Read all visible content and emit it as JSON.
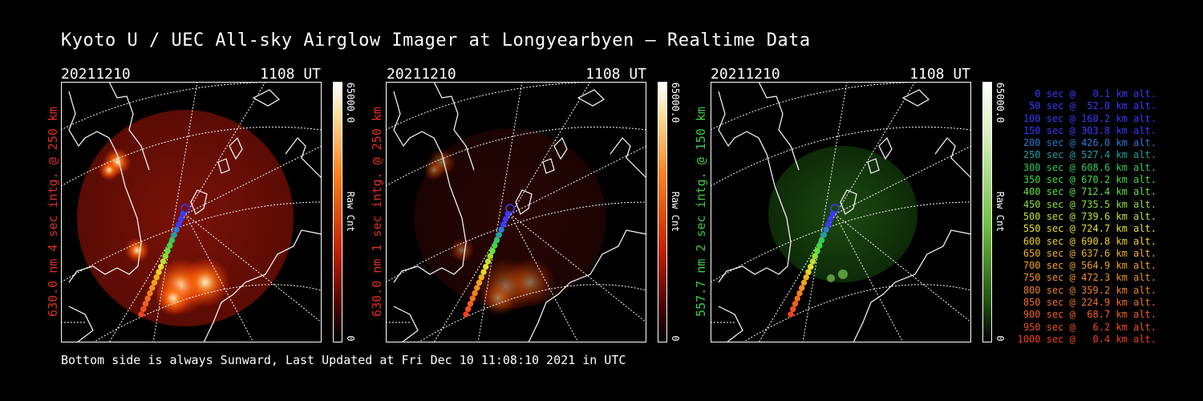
{
  "title": "Kyoto U / UEC All-sky Airglow Imager at Longyearbyen — Realtime Data",
  "footer": "Bottom side is always Sunward, Last Updated at Fri Dec 10 11:08:10 2021 in UTC",
  "panels": [
    {
      "date": "20211210",
      "time": "1108 UT",
      "ylabel": "630.0 nm 4 sec intg. @ 250 km",
      "label_color": "#e03020",
      "cbar_max": "65000.0",
      "cbar_min": "0",
      "cbar_label": "Raw Cnt",
      "cmap": "red",
      "brightness": "strong"
    },
    {
      "date": "20211210",
      "time": "1108 UT",
      "ylabel": "630.0 nm 1 sec intg. @ 250 km",
      "label_color": "#e03020",
      "cbar_max": "65000.0",
      "cbar_min": "0",
      "cbar_label": "Raw Cnt",
      "cmap": "red",
      "brightness": "weak"
    },
    {
      "date": "20211210",
      "time": "1108 UT",
      "ylabel": "557.7 nm 2 sec intg. @ 150 km",
      "label_color": "#3ad03a",
      "cbar_max": "65000.0",
      "cbar_min": "0",
      "cbar_label": "Raw Cnt",
      "cmap": "green",
      "brightness": "weak"
    }
  ],
  "legend": [
    {
      "text": "0 sec @   0.1 km alt.",
      "color": "#3a3aff"
    },
    {
      "text": "50 sec @  52.0 km alt.",
      "color": "#3a3aff"
    },
    {
      "text": "100 sec @ 160.2 km alt.",
      "color": "#3a3aff"
    },
    {
      "text": "150 sec @ 303.8 km alt.",
      "color": "#3a3aff"
    },
    {
      "text": "200 sec @ 426.0 km alt.",
      "color": "#2a7ad8"
    },
    {
      "text": "250 sec @ 527.4 km alt.",
      "color": "#20a0a0"
    },
    {
      "text": "300 sec @ 608.6 km alt.",
      "color": "#30c860"
    },
    {
      "text": "350 sec @ 670.2 km alt.",
      "color": "#40d840"
    },
    {
      "text": "400 sec @ 712.4 km alt.",
      "color": "#60e040"
    },
    {
      "text": "450 sec @ 735.5 km alt.",
      "color": "#90e030"
    },
    {
      "text": "500 sec @ 739.6 km alt.",
      "color": "#c0e030"
    },
    {
      "text": "550 sec @ 724.7 km alt.",
      "color": "#e0e030"
    },
    {
      "text": "600 sec @ 690.8 km alt.",
      "color": "#f0d020"
    },
    {
      "text": "650 sec @ 637.6 km alt.",
      "color": "#f0b020"
    },
    {
      "text": "700 sec @ 564.9 km alt.",
      "color": "#f0a020"
    },
    {
      "text": "750 sec @ 472.3 km alt.",
      "color": "#f09020"
    },
    {
      "text": "800 sec @ 359.2 km alt.",
      "color": "#f08020"
    },
    {
      "text": "850 sec @ 224.9 km alt.",
      "color": "#f07020"
    },
    {
      "text": "900 sec @  68.7 km alt.",
      "color": "#f06020"
    },
    {
      "text": "950 sec @   6.2 km alt.",
      "color": "#f05020"
    },
    {
      "text": "1000 sec @   0.4 km alt.",
      "color": "#f04020"
    }
  ]
}
